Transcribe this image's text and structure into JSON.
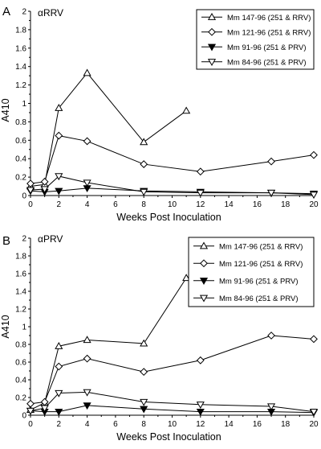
{
  "figure": {
    "panel_labels": [
      "A",
      "B"
    ]
  },
  "chart_data": [
    {
      "type": "line",
      "panel_label": "A",
      "title": "αRRV",
      "xlabel": "Weeks Post Inoculation",
      "ylabel": "A410",
      "xlim": [
        0,
        20
      ],
      "ylim": [
        0,
        2
      ],
      "xticks": [
        0,
        2,
        4,
        6,
        8,
        10,
        12,
        14,
        16,
        18,
        20
      ],
      "yticks": [
        0,
        0.2,
        0.4,
        0.6,
        0.8,
        1,
        1.2,
        1.4,
        1.6,
        1.8,
        2
      ],
      "ytick_labels": [
        "0",
        "0.2",
        "0.4",
        "0.6",
        "0.8",
        "1",
        "1.2",
        "1.4",
        "1.6",
        "1.8",
        "2"
      ],
      "legend_position": "top-right",
      "grid": false,
      "series": [
        {
          "name": "Mm 147-96 (251 & RRV)",
          "marker": "triangle-up-open",
          "points": [
            [
              0,
              0.1
            ],
            [
              1,
              0.12
            ],
            [
              2,
              0.95
            ],
            [
              4,
              1.33
            ],
            [
              8,
              0.58
            ],
            [
              11,
              0.92
            ]
          ]
        },
        {
          "name": "Mm 121-96 (251 & RRV)",
          "marker": "diamond-open",
          "points": [
            [
              0,
              0.13
            ],
            [
              1,
              0.15
            ],
            [
              2,
              0.65
            ],
            [
              4,
              0.59
            ],
            [
              8,
              0.34
            ],
            [
              12,
              0.26
            ],
            [
              17,
              0.37
            ],
            [
              20,
              0.44
            ]
          ]
        },
        {
          "name": "Mm 91-96 (251 & PRV)",
          "marker": "triangle-down-filled",
          "points": [
            [
              0,
              0.05
            ],
            [
              1,
              0.04
            ],
            [
              2,
              0.05
            ],
            [
              4,
              0.08
            ],
            [
              8,
              0.05
            ],
            [
              12,
              0.04
            ],
            [
              17,
              0.03
            ],
            [
              20,
              0.02
            ]
          ]
        },
        {
          "name": "Mm 84-96 (251 & PRV)",
          "marker": "triangle-down-open",
          "points": [
            [
              0,
              0.06
            ],
            [
              1,
              0.07
            ],
            [
              2,
              0.21
            ],
            [
              4,
              0.14
            ],
            [
              8,
              0.04
            ],
            [
              12,
              0.03
            ],
            [
              17,
              0.03
            ],
            [
              20,
              0.01
            ]
          ]
        }
      ]
    },
    {
      "type": "line",
      "panel_label": "B",
      "title": "αPRV",
      "xlabel": "Weeks Post Inoculation",
      "ylabel": "A410",
      "xlim": [
        0,
        20
      ],
      "ylim": [
        0,
        2
      ],
      "xticks": [
        0,
        2,
        4,
        6,
        8,
        10,
        12,
        14,
        16,
        18,
        20
      ],
      "yticks": [
        0,
        0.2,
        0.4,
        0.6,
        0.8,
        1,
        1.2,
        1.4,
        1.6,
        1.8,
        2
      ],
      "ytick_labels": [
        "0",
        "0.2",
        "0.4",
        "0.6",
        "0.8",
        "1",
        "1.2",
        "1.4",
        "1.6",
        "1.8",
        "2"
      ],
      "legend_position": "top-right",
      "grid": false,
      "series": [
        {
          "name": "Mm 147-96 (251 & RRV)",
          "marker": "triangle-up-open",
          "points": [
            [
              0,
              0.06
            ],
            [
              1,
              0.14
            ],
            [
              2,
              0.78
            ],
            [
              4,
              0.85
            ],
            [
              8,
              0.81
            ],
            [
              11,
              1.55
            ]
          ]
        },
        {
          "name": "Mm 121-96 (251 & RRV)",
          "marker": "diamond-open",
          "points": [
            [
              0,
              0.13
            ],
            [
              1,
              0.15
            ],
            [
              2,
              0.55
            ],
            [
              4,
              0.64
            ],
            [
              8,
              0.49
            ],
            [
              12,
              0.62
            ],
            [
              17,
              0.9
            ],
            [
              20,
              0.86
            ]
          ]
        },
        {
          "name": "Mm 91-96 (251 & PRV)",
          "marker": "triangle-down-filled",
          "points": [
            [
              0,
              0.05
            ],
            [
              1,
              0.04
            ],
            [
              2,
              0.04
            ],
            [
              4,
              0.11
            ],
            [
              8,
              0.07
            ],
            [
              12,
              0.04
            ],
            [
              17,
              0.04
            ],
            [
              20,
              0.03
            ]
          ]
        },
        {
          "name": "Mm 84-96 (251 & PRV)",
          "marker": "triangle-down-open",
          "points": [
            [
              0,
              0.05
            ],
            [
              1,
              0.08
            ],
            [
              2,
              0.25
            ],
            [
              4,
              0.26
            ],
            [
              8,
              0.15
            ],
            [
              12,
              0.12
            ],
            [
              17,
              0.1
            ],
            [
              20,
              0.04
            ]
          ]
        }
      ]
    }
  ]
}
